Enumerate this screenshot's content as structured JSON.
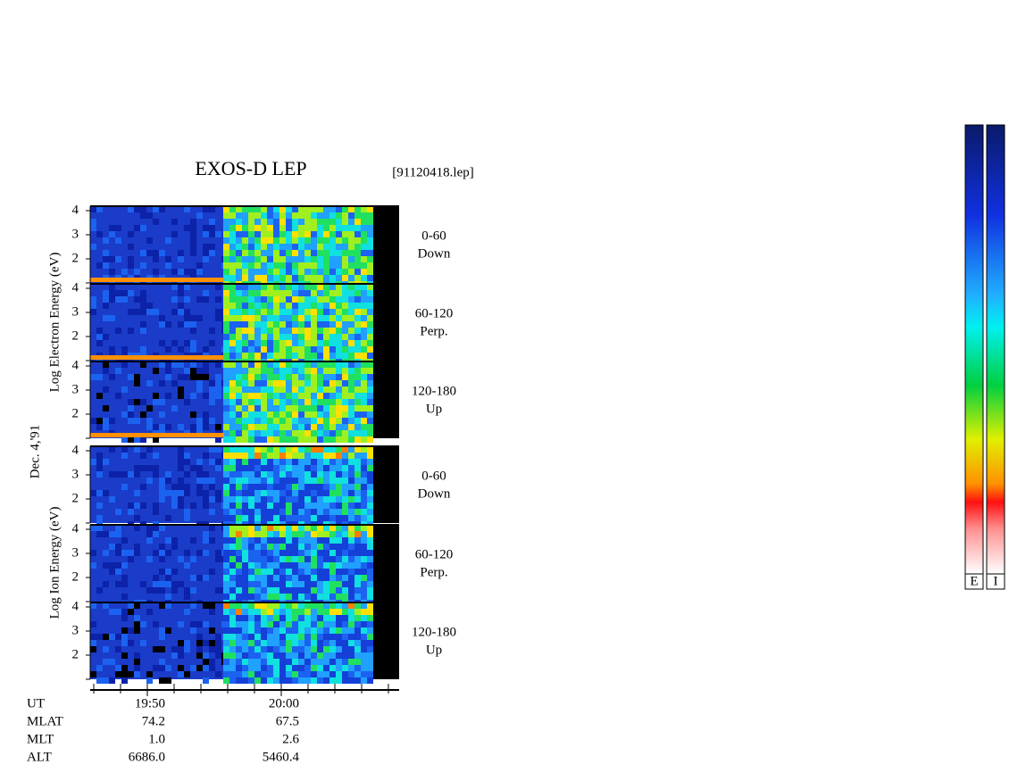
{
  "header": {
    "title": "EXOS-D LEP",
    "file": "[91120418.lep]"
  },
  "date_label": "Dec. 4,'91",
  "groups": [
    {
      "axis_label": "Log  Electron  Energy (eV)",
      "panels": [
        {
          "range": "0-60",
          "direction": "Down"
        },
        {
          "range": "60-120",
          "direction": "Perp."
        },
        {
          "range": "120-180",
          "direction": "Up"
        }
      ]
    },
    {
      "axis_label": "Log  Ion  Energy (eV)",
      "panels": [
        {
          "range": "0-60",
          "direction": "Down"
        },
        {
          "range": "60-120",
          "direction": "Perp."
        },
        {
          "range": "120-180",
          "direction": "Up"
        }
      ]
    }
  ],
  "energy_ticks": [
    "4",
    "3",
    "2"
  ],
  "ephemeris": {
    "rows": [
      [
        "UT",
        "19:50",
        "20:00"
      ],
      [
        "MLAT",
        "74.2",
        "67.5"
      ],
      [
        "MLT",
        "1.0",
        "2.6"
      ],
      [
        "ALT",
        "6686.0",
        "5460.4"
      ]
    ]
  },
  "colorbars": [
    "E",
    "I"
  ]
}
